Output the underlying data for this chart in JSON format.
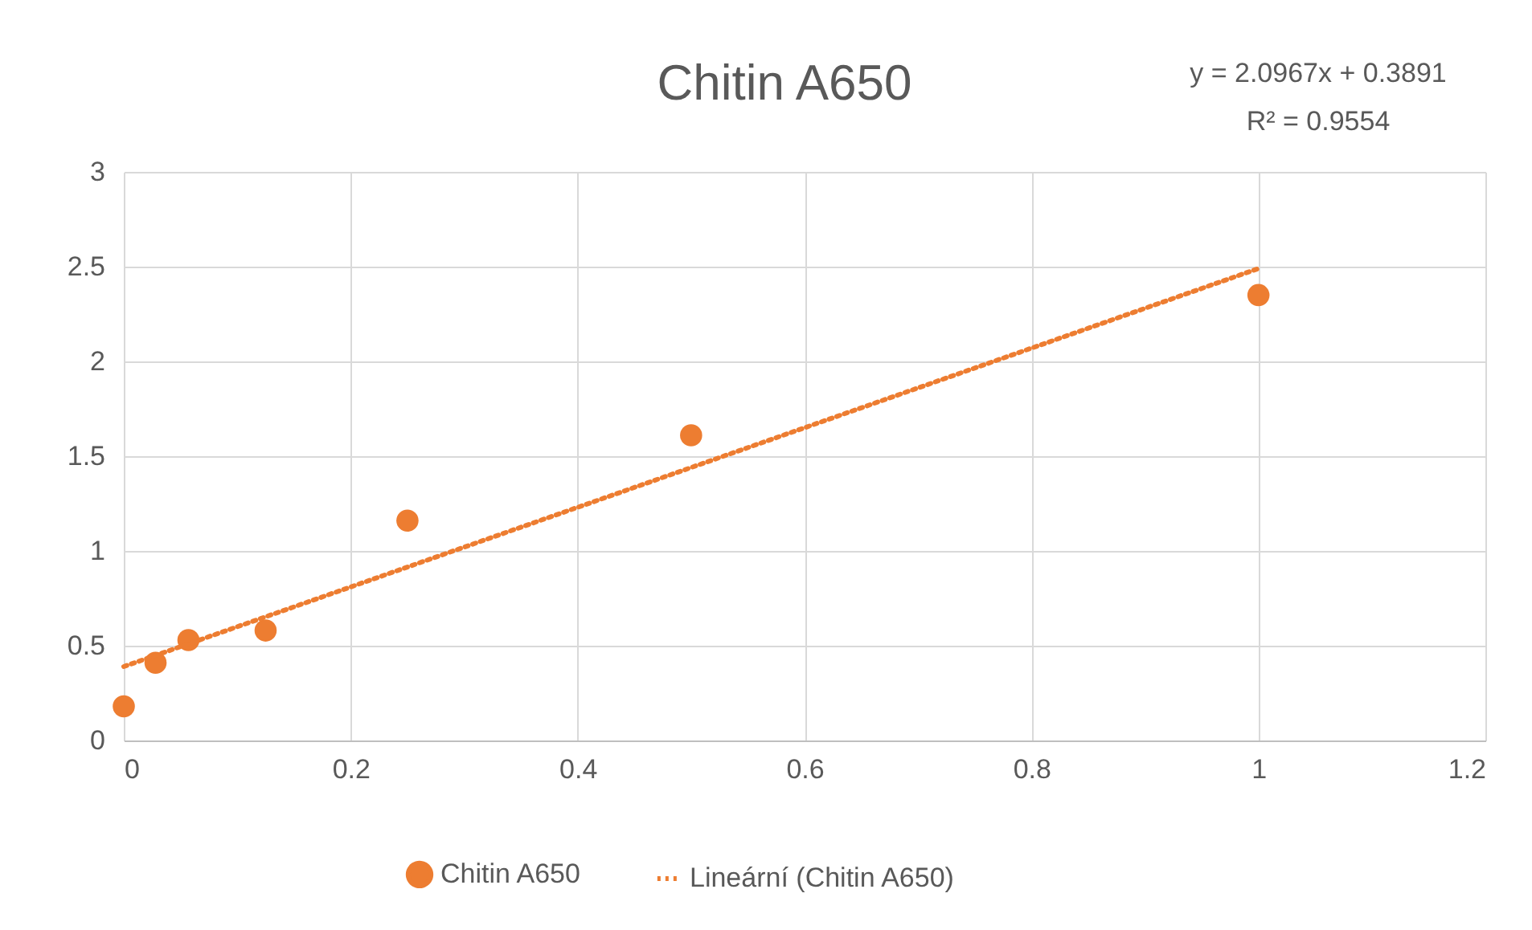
{
  "chart_data": {
    "type": "scatter",
    "title": "Chitin A650",
    "annotations": [
      "y = 2.0967x + 0.3891",
      "R² = 0.9554"
    ],
    "x": [
      0,
      0.028,
      0.057,
      0.125,
      0.25,
      0.5,
      1
    ],
    "series": [
      {
        "name": "Chitin A650",
        "color": "#ed7d31",
        "marker": "circle",
        "values": [
          0.18,
          0.41,
          0.53,
          0.58,
          1.16,
          1.61,
          2.35
        ]
      },
      {
        "name": "Lineární (Chitin A650)",
        "type": "line",
        "color": "#ed7d31",
        "line_style": "dotted",
        "x": [
          0,
          1
        ],
        "values": [
          0.39,
          2.49
        ]
      }
    ],
    "xlim": [
      0,
      1.2
    ],
    "xticks": [
      0,
      0.2,
      0.4,
      0.6,
      0.8,
      1,
      1.2
    ],
    "ylim": [
      0,
      3
    ],
    "yticks": [
      0,
      0.5,
      1,
      1.5,
      2,
      2.5,
      3
    ],
    "grid": true,
    "legend": "bottom"
  }
}
